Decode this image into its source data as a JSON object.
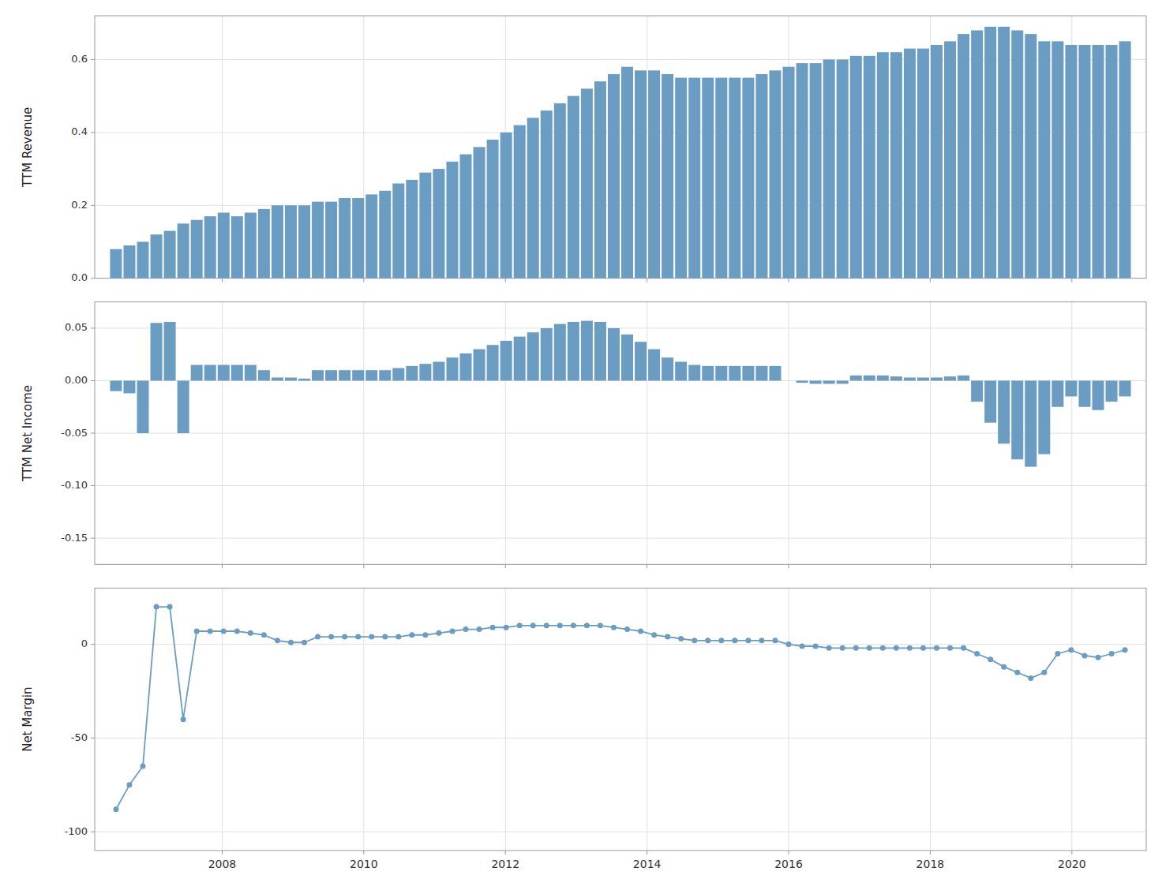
{
  "chart_data": [
    {
      "type": "bar",
      "y_label": "TTM Revenue",
      "color": "#6b9dc2",
      "grid": true,
      "tick_labels": "y",
      "xlim": [
        2006.2,
        2021.05
      ],
      "xticks": [
        2008,
        2010,
        2012,
        2014,
        2016,
        2018,
        2020
      ],
      "ylim": [
        0,
        0.72
      ],
      "yticks": [
        {
          "value": 0.0,
          "label": "0.0"
        },
        0.2,
        0.4,
        0.6
      ],
      "x": [
        2006.5,
        2006.69,
        2006.88,
        2007.07,
        2007.26,
        2007.45,
        2007.64,
        2007.83,
        2008.02,
        2008.21,
        2008.4,
        2008.59,
        2008.78,
        2008.97,
        2009.16,
        2009.35,
        2009.54,
        2009.73,
        2009.92,
        2010.11,
        2010.3,
        2010.49,
        2010.68,
        2010.87,
        2011.06,
        2011.25,
        2011.44,
        2011.63,
        2011.82,
        2012.01,
        2012.2,
        2012.39,
        2012.58,
        2012.77,
        2012.96,
        2013.15,
        2013.34,
        2013.53,
        2013.72,
        2013.91,
        2014.1,
        2014.29,
        2014.48,
        2014.67,
        2014.86,
        2015.05,
        2015.24,
        2015.43,
        2015.62,
        2015.81,
        2016,
        2016.19,
        2016.38,
        2016.57,
        2016.76,
        2016.95,
        2017.14,
        2017.33,
        2017.52,
        2017.71,
        2017.9,
        2018.09,
        2018.28,
        2018.47,
        2018.66,
        2018.85,
        2019.04,
        2019.23,
        2019.42,
        2019.61,
        2019.8,
        2019.99,
        2020.18,
        2020.37,
        2020.56,
        2020.75
      ],
      "values": [
        0.08,
        0.09,
        0.1,
        0.12,
        0.13,
        0.15,
        0.16,
        0.17,
        0.18,
        0.17,
        0.18,
        0.19,
        0.2,
        0.2,
        0.2,
        0.21,
        0.21,
        0.22,
        0.22,
        0.23,
        0.24,
        0.26,
        0.27,
        0.29,
        0.3,
        0.32,
        0.34,
        0.36,
        0.38,
        0.4,
        0.42,
        0.44,
        0.46,
        0.48,
        0.5,
        0.52,
        0.54,
        0.56,
        0.58,
        0.57,
        0.57,
        0.56,
        0.55,
        0.55,
        0.55,
        0.55,
        0.55,
        0.55,
        0.56,
        0.57,
        0.58,
        0.59,
        0.59,
        0.6,
        0.6,
        0.61,
        0.61,
        0.62,
        0.62,
        0.63,
        0.63,
        0.64,
        0.65,
        0.67,
        0.68,
        0.69,
        0.69,
        0.68,
        0.67,
        0.65,
        0.65,
        0.64,
        0.64,
        0.64,
        0.64,
        0.65
      ]
    },
    {
      "type": "bar",
      "y_label": "TTM Net Income",
      "color": "#6b9dc2",
      "grid": true,
      "tick_labels": "y",
      "xlim": [
        2006.2,
        2021.05
      ],
      "xticks": [
        2008,
        2010,
        2012,
        2014,
        2016,
        2018,
        2020
      ],
      "ylim": [
        -0.175,
        0.075
      ],
      "yticks": [
        -0.15,
        {
          "value": -0.1,
          "label": "-0.10"
        },
        -0.05,
        {
          "value": 0.0,
          "label": "0.00"
        },
        0.05
      ],
      "x": [
        2006.5,
        2006.69,
        2006.88,
        2007.07,
        2007.26,
        2007.45,
        2007.64,
        2007.83,
        2008.02,
        2008.21,
        2008.4,
        2008.59,
        2008.78,
        2008.97,
        2009.16,
        2009.35,
        2009.54,
        2009.73,
        2009.92,
        2010.11,
        2010.3,
        2010.49,
        2010.68,
        2010.87,
        2011.06,
        2011.25,
        2011.44,
        2011.63,
        2011.82,
        2012.01,
        2012.2,
        2012.39,
        2012.58,
        2012.77,
        2012.96,
        2013.15,
        2013.34,
        2013.53,
        2013.72,
        2013.91,
        2014.1,
        2014.29,
        2014.48,
        2014.67,
        2014.86,
        2015.05,
        2015.24,
        2015.43,
        2015.62,
        2015.81,
        2016,
        2016.19,
        2016.38,
        2016.57,
        2016.76,
        2016.95,
        2017.14,
        2017.33,
        2017.52,
        2017.71,
        2017.9,
        2018.09,
        2018.28,
        2018.47,
        2018.66,
        2018.85,
        2019.04,
        2019.23,
        2019.42,
        2019.61,
        2019.8,
        2019.99,
        2020.18,
        2020.37,
        2020.56,
        2020.75
      ],
      "values": [
        -0.01,
        -0.012,
        -0.05,
        0.055,
        0.056,
        -0.05,
        0.015,
        0.015,
        0.015,
        0.015,
        0.015,
        0.01,
        0.003,
        0.003,
        0.002,
        0.01,
        0.01,
        0.01,
        0.01,
        0.01,
        0.01,
        0.012,
        0.014,
        0.016,
        0.018,
        0.022,
        0.026,
        0.03,
        0.034,
        0.038,
        0.042,
        0.046,
        0.05,
        0.054,
        0.056,
        0.057,
        0.056,
        0.05,
        0.044,
        0.037,
        0.03,
        0.022,
        0.018,
        0.015,
        0.014,
        0.014,
        0.014,
        0.014,
        0.014,
        0.014,
        0.0,
        -0.002,
        -0.003,
        -0.003,
        -0.003,
        0.005,
        0.005,
        0.005,
        0.004,
        0.003,
        0.003,
        0.003,
        0.004,
        0.005,
        -0.02,
        -0.04,
        -0.06,
        -0.075,
        -0.082,
        -0.07,
        -0.025,
        -0.015,
        -0.025,
        -0.028,
        -0.02,
        -0.015
      ]
    },
    {
      "type": "line",
      "y_label": "Net Margin",
      "color": "#6b9dc2",
      "marker": "circle",
      "grid": true,
      "xlim": [
        2006.2,
        2021.05
      ],
      "xticks": [
        2008,
        2010,
        2012,
        2014,
        2016,
        2018,
        2020
      ],
      "ylim": [
        -110,
        30
      ],
      "yticks": [
        -100,
        -50,
        0
      ],
      "x": [
        2006.5,
        2006.69,
        2006.88,
        2007.07,
        2007.26,
        2007.45,
        2007.64,
        2007.83,
        2008.02,
        2008.21,
        2008.4,
        2008.59,
        2008.78,
        2008.97,
        2009.16,
        2009.35,
        2009.54,
        2009.73,
        2009.92,
        2010.11,
        2010.3,
        2010.49,
        2010.68,
        2010.87,
        2011.06,
        2011.25,
        2011.44,
        2011.63,
        2011.82,
        2012.01,
        2012.2,
        2012.39,
        2012.58,
        2012.77,
        2012.96,
        2013.15,
        2013.34,
        2013.53,
        2013.72,
        2013.91,
        2014.1,
        2014.29,
        2014.48,
        2014.67,
        2014.86,
        2015.05,
        2015.24,
        2015.43,
        2015.62,
        2015.81,
        2016,
        2016.19,
        2016.38,
        2016.57,
        2016.76,
        2016.95,
        2017.14,
        2017.33,
        2017.52,
        2017.71,
        2017.9,
        2018.09,
        2018.28,
        2018.47,
        2018.66,
        2018.85,
        2019.04,
        2019.23,
        2019.42,
        2019.61,
        2019.8,
        2019.99,
        2020.18,
        2020.37,
        2020.56,
        2020.75
      ],
      "values": [
        -88,
        -75,
        -65,
        20,
        20,
        -40,
        7,
        7,
        7,
        7,
        6,
        5,
        2,
        1,
        1,
        4,
        4,
        4,
        4,
        4,
        4,
        4,
        5,
        5,
        6,
        7,
        8,
        8,
        9,
        9,
        10,
        10,
        10,
        10,
        10,
        10,
        10,
        9,
        8,
        7,
        5,
        4,
        3,
        2,
        2,
        2,
        2,
        2,
        2,
        2,
        0,
        -1,
        -1,
        -2,
        -2,
        -2,
        -2,
        -2,
        -2,
        -2,
        -2,
        -2,
        -2,
        -2,
        -5,
        -8,
        -12,
        -15,
        -18,
        -15,
        -5,
        -3,
        -6,
        -7,
        -5,
        -3
      ]
    }
  ]
}
